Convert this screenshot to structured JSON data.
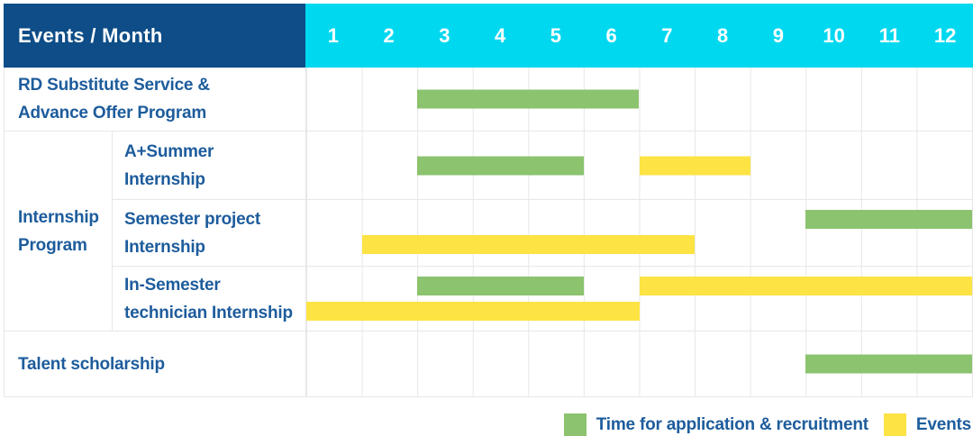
{
  "header": {
    "title": "Events / Month"
  },
  "colors": {
    "navy": "#0e4d87",
    "cyan": "#00d8f0",
    "text": "#1d5c9c",
    "grid": "#e7e7e7",
    "green": "#8bc36e",
    "yellow": "#fde343"
  },
  "chart_data": {
    "type": "gantt",
    "x_unit": "month",
    "x_ticks": [
      "1",
      "2",
      "3",
      "4",
      "5",
      "6",
      "7",
      "8",
      "9",
      "10",
      "11",
      "12"
    ],
    "x_range": [
      1,
      12
    ],
    "row_header": "Events / Month",
    "legend_position": "bottom-right",
    "series": [
      {
        "key": "recruitment",
        "label": "Time for application & recruitment",
        "color": "#8bc36e"
      },
      {
        "key": "events",
        "label": "Events",
        "color": "#fde343"
      }
    ],
    "rows": [
      {
        "label": "RD Substitute Service &\nAdvance Offer Program",
        "group": "",
        "bars": [
          {
            "series": "recruitment",
            "start": 3,
            "end": 6,
            "lane": "center"
          }
        ]
      },
      {
        "label": "A+Summer\nInternship",
        "group": "Internship\nProgram",
        "bars": [
          {
            "series": "recruitment",
            "start": 3,
            "end": 5,
            "lane": "center"
          },
          {
            "series": "events",
            "start": 7,
            "end": 8,
            "lane": "center"
          }
        ]
      },
      {
        "label": "Semester project\nInternship",
        "group": "Internship\nProgram",
        "bars": [
          {
            "series": "recruitment",
            "start": 10,
            "end": 12,
            "lane": "top"
          },
          {
            "series": "events",
            "start": 2,
            "end": 7,
            "lane": "bottom"
          }
        ]
      },
      {
        "label": "In-Semester\ntechnician Internship",
        "group": "Internship\nProgram",
        "bars": [
          {
            "series": "recruitment",
            "start": 3,
            "end": 5,
            "lane": "top"
          },
          {
            "series": "events",
            "start": 7,
            "end": 12,
            "lane": "top"
          },
          {
            "series": "events",
            "start": 1,
            "end": 6,
            "lane": "bottom"
          }
        ]
      },
      {
        "label": "Talent scholarship",
        "group": "",
        "bars": [
          {
            "series": "recruitment",
            "start": 10,
            "end": 12,
            "lane": "center"
          }
        ]
      }
    ]
  }
}
